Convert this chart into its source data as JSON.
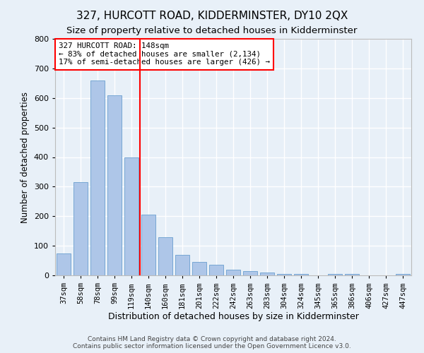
{
  "title": "327, HURCOTT ROAD, KIDDERMINSTER, DY10 2QX",
  "subtitle": "Size of property relative to detached houses in Kidderminster",
  "xlabel": "Distribution of detached houses by size in Kidderminster",
  "ylabel": "Number of detached properties",
  "categories": [
    "37sqm",
    "58sqm",
    "78sqm",
    "99sqm",
    "119sqm",
    "140sqm",
    "160sqm",
    "181sqm",
    "201sqm",
    "222sqm",
    "242sqm",
    "263sqm",
    "283sqm",
    "304sqm",
    "324sqm",
    "345sqm",
    "365sqm",
    "386sqm",
    "406sqm",
    "427sqm",
    "447sqm"
  ],
  "values": [
    75,
    315,
    660,
    610,
    400,
    205,
    130,
    70,
    45,
    35,
    20,
    15,
    10,
    5,
    5,
    0,
    5,
    5,
    0,
    0,
    5
  ],
  "bar_color": "#aec6e8",
  "bar_edge_color": "#6a9fcf",
  "annotation_text": "327 HURCOTT ROAD: 148sqm\n← 83% of detached houses are smaller (2,134)\n17% of semi-detached houses are larger (426) →",
  "annotation_box_color": "white",
  "annotation_box_edge_color": "red",
  "vline_x_index": 5,
  "vline_color": "red",
  "ylim": [
    0,
    800
  ],
  "yticks": [
    0,
    100,
    200,
    300,
    400,
    500,
    600,
    700,
    800
  ],
  "background_color": "#e8f0f8",
  "grid_color": "white",
  "title_fontsize": 11,
  "subtitle_fontsize": 9.5,
  "ylabel_fontsize": 8.5,
  "xlabel_fontsize": 9,
  "tick_fontsize": 8,
  "xtick_fontsize": 7.5,
  "footer_text": "Contains HM Land Registry data © Crown copyright and database right 2024.\nContains public sector information licensed under the Open Government Licence v3.0."
}
